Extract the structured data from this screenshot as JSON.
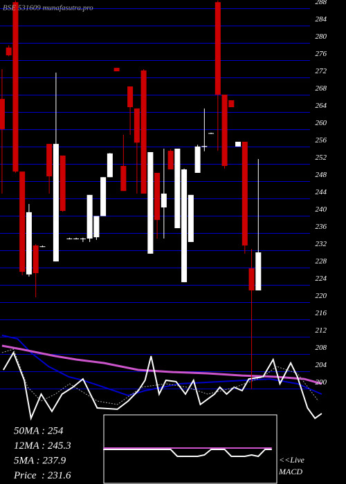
{
  "chart_data": {
    "type": "candlestick",
    "title": "BSE 531609 munafasutra.pro",
    "ylim": [
      194,
      290
    ],
    "xlim": [
      -0.3,
      51
    ],
    "yticks": [
      200,
      204,
      208,
      212,
      216,
      220,
      224,
      228,
      232,
      236,
      240,
      244,
      248,
      252,
      256,
      260,
      264,
      268,
      272,
      276,
      280,
      284,
      288
    ],
    "grid": true,
    "grid_color": "#0000cc",
    "up_color": "#ffffff",
    "down_color": "#cc0000",
    "open": [
      267.1,
      279,
      289.5,
      250.3,
      226.5,
      233.2,
      233,
      256.7,
      229.5,
      254,
      234.8,
      234.8,
      234.8,
      234.8,
      235.1,
      240,
      249,
      274.3,
      251.6,
      270,
      264.9,
      273.7,
      231.3,
      250,
      242,
      255.1,
      237.2,
      224.7,
      234,
      250,
      256,
      259.2,
      289.5,
      268.1,
      266.8,
      256.1,
      257.2,
      227.9,
      222.8
    ],
    "high": [
      274,
      279.5,
      289.9,
      250.3,
      242.8,
      233.5,
      233.2,
      256.7,
      273.2,
      254,
      235,
      235,
      235,
      244.9,
      240,
      249,
      254.6,
      274.3,
      258.8,
      270,
      264.9,
      274,
      254.8,
      250,
      255.6,
      255.5,
      255.6,
      251,
      244.9,
      256.5,
      264.9,
      259.3,
      289.9,
      268.1,
      266.8,
      257.2,
      257.2,
      232.4,
      253.2
    ],
    "low": [
      245.2,
      277,
      250,
      226.3,
      226,
      221.2,
      232.8,
      245.2,
      229.5,
      241,
      234.6,
      234.6,
      234,
      234,
      234.5,
      240,
      249,
      273.5,
      245.8,
      258.8,
      245.2,
      245.2,
      231.3,
      234.8,
      234.8,
      250.8,
      237.2,
      224.7,
      234,
      250,
      255,
      259,
      255.1,
      251,
      265.2,
      256.1,
      231.3,
      200,
      222.8
    ],
    "close": [
      260.1,
      277.2,
      250.3,
      227.1,
      240.9,
      226.8,
      233,
      249.2,
      256.7,
      241.2,
      234.8,
      234.8,
      234.8,
      244.9,
      240,
      249,
      254.5,
      273.5,
      245.8,
      265.2,
      257,
      245.2,
      254.8,
      239.1,
      245.2,
      250.8,
      255.6,
      250.8,
      244.9,
      256.1,
      256.2,
      259.2,
      268.1,
      251.6,
      265.2,
      257.2,
      233.2,
      222.8,
      231.6
    ],
    "lines": [
      {
        "color": "#0000cc",
        "width": 2,
        "dash": false,
        "x": [
          0,
          2.3,
          4.3,
          6.9,
          9.9,
          12,
          15.1,
          18.7,
          21.2,
          26.4,
          32.5,
          39.7,
          43.8,
          47.4
        ],
        "values": [
          212.4,
          211.6,
          208.4,
          205.2,
          202.8,
          202,
          200.4,
          198.5,
          199.6,
          201.2,
          201.7,
          202.3,
          201.2,
          198.8
        ]
      },
      {
        "color": "#cc55cc",
        "width": 3,
        "dash": false,
        "x": [
          0,
          2.8,
          7.9,
          11,
          15.1,
          20.2,
          25.3,
          30.5,
          35.6,
          40.7,
          44.8,
          47.4
        ],
        "values": [
          210,
          209.2,
          207.6,
          206.8,
          206,
          204.4,
          203.9,
          203.6,
          203.1,
          202.8,
          202.3,
          201.2
        ]
      },
      {
        "color": "#ffffff",
        "width": 2,
        "dash": false,
        "x": [
          0.2,
          1.7,
          3.3,
          4.3,
          5.8,
          7.4,
          8.9,
          10.5,
          12,
          14.1,
          17.1,
          18.7,
          20.2,
          21.2,
          22.1,
          23.3,
          24.3,
          25.8,
          27.2,
          28.4,
          29.4,
          31.5,
          32.3,
          33.3,
          34.4,
          35.6,
          36.6,
          38.7,
          40.2,
          41.2,
          42.8,
          43.8,
          45.3,
          46.4,
          47.4
        ],
        "values": [
          204.4,
          208.4,
          202,
          193.2,
          198.8,
          194.8,
          198.8,
          200.4,
          202.3,
          195.6,
          195.3,
          197.2,
          199.6,
          202,
          207.6,
          198.8,
          202,
          201.7,
          198.8,
          202,
          196.4,
          198.8,
          200.4,
          198.8,
          200.4,
          199.6,
          202.3,
          202.8,
          206.8,
          201.2,
          206,
          202.8,
          195.6,
          193.2,
          194.3
        ]
      },
      {
        "color": "#aaaaaa",
        "width": 1,
        "dash": true,
        "x": [
          0,
          1.7,
          3.8,
          5.8,
          7.9,
          10,
          14.1,
          17.1,
          20.7,
          24.3,
          27.4,
          30.5,
          34.6,
          38.7,
          40.7,
          43.8,
          46.9
        ],
        "values": [
          208.4,
          209.2,
          200.4,
          197.2,
          198.8,
          201.2,
          197.2,
          196.4,
          200.4,
          201.2,
          200.4,
          198.8,
          200.4,
          202.8,
          205.2,
          203.6,
          197.2
        ]
      }
    ],
    "stats": [
      "50MA : 254",
      "12MA : 245.3",
      "5MA : 237.9",
      "Price  : 231.6"
    ],
    "macd": {
      "label": [
        "<<Live",
        "MACD"
      ],
      "ylim": [
        -5,
        5
      ],
      "x": [
        15,
        16,
        17,
        18,
        19,
        20,
        21,
        22,
        23,
        24,
        25,
        26,
        27,
        28,
        29,
        30,
        31,
        32,
        33,
        34,
        35,
        36,
        37,
        38,
        39,
        40
      ],
      "macd_values": [
        0,
        0,
        0,
        0,
        0,
        0,
        0,
        0,
        0,
        0,
        0,
        -1,
        -1,
        -1,
        -1,
        -0.8,
        0,
        0,
        0,
        -1,
        -1,
        -1,
        -0.8,
        -1,
        0,
        0
      ],
      "signal_values": [
        0.2,
        0.2,
        0.2,
        0.2,
        0.2,
        0.2,
        0.2,
        0.2,
        0.2,
        0.2,
        0.2,
        0.2,
        0.2,
        0.2,
        0.2,
        0.2,
        0.2,
        0.2,
        0.2,
        0.2,
        0.2,
        0.2,
        0.2,
        0.2,
        0.2,
        0.2
      ],
      "macd_color": "#ffffff",
      "signal_color": "#cc55cc"
    }
  }
}
